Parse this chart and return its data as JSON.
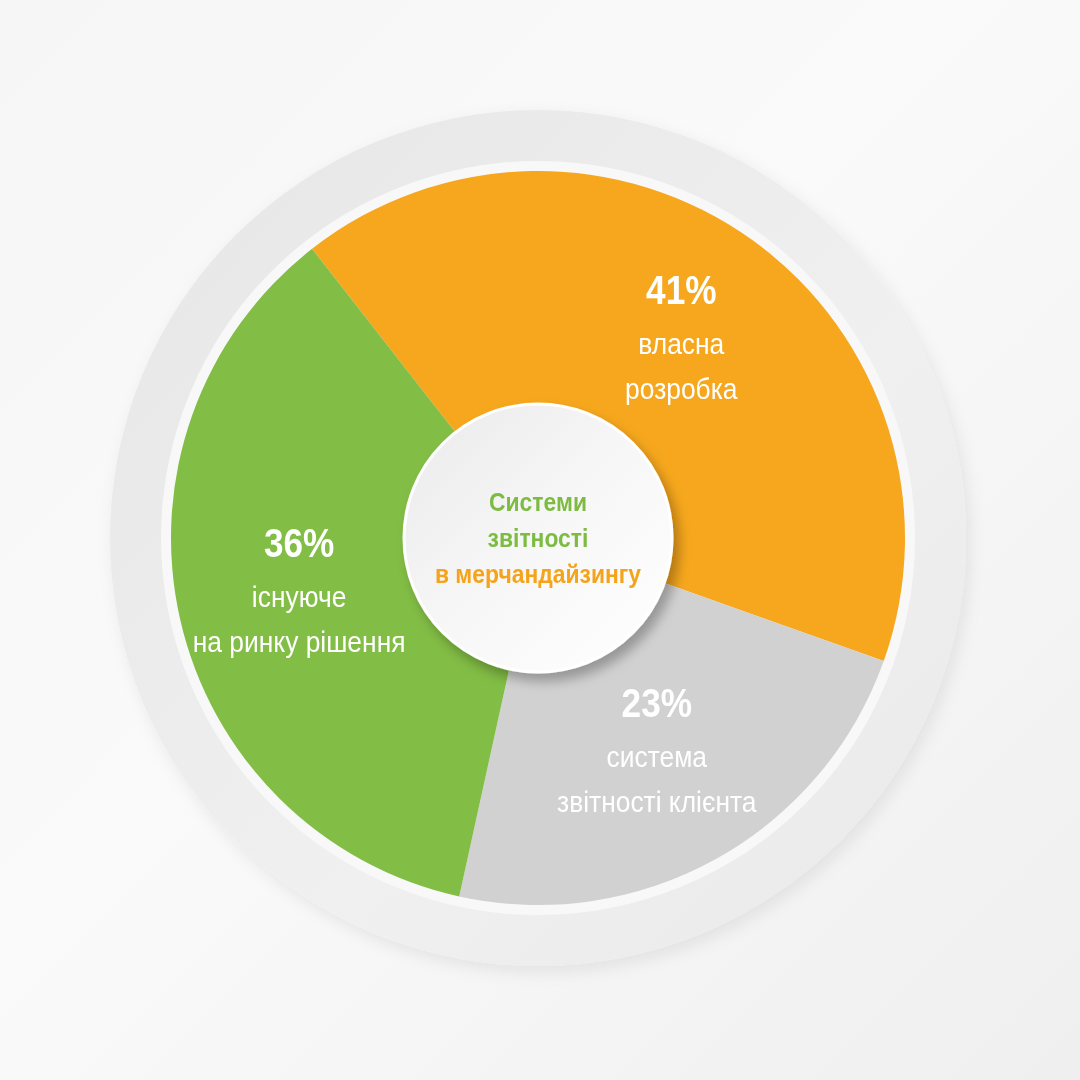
{
  "chart_data": {
    "type": "donut",
    "title": "Системи звітності в мерчандайзингу",
    "categories": [
      "власна розробка",
      "система звітності клієнта",
      "існуюче на ринку рішення"
    ],
    "values": [
      41,
      23,
      36
    ],
    "colors": [
      "#f6a71d",
      "#d1d1d1",
      "#82bd45"
    ],
    "value_labels": [
      "41%",
      "23%",
      "36%"
    ]
  }
}
